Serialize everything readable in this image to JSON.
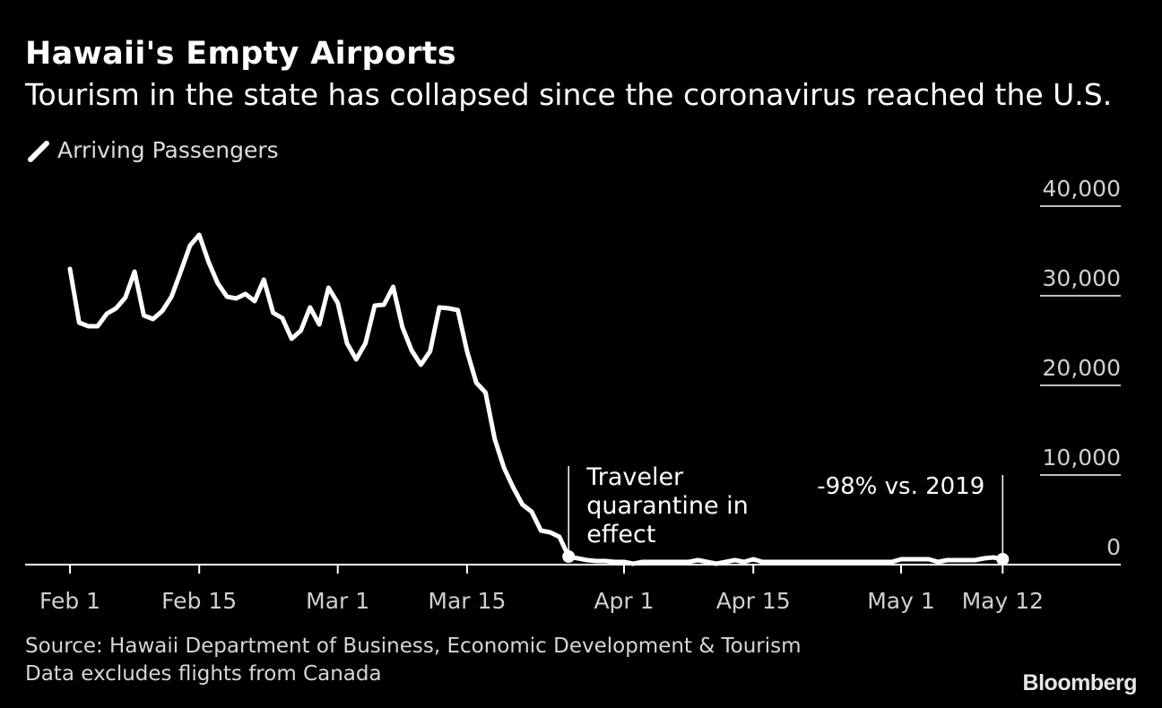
{
  "header": {
    "title": "Hawaii's Empty Airports",
    "subtitle": "Tourism in the state has collapsed since the coronavirus reached the U.S."
  },
  "footer": {
    "source": "Source: Hawaii Department of Business, Economic Development & Tourism",
    "note": "Data excludes flights from Canada",
    "brand": "Bloomberg"
  },
  "colors": {
    "background": "#000000",
    "line": "#ffffff",
    "text": "#ffffff"
  },
  "chart_data": {
    "type": "line",
    "title": "Hawaii's Empty Airports",
    "subtitle": "Tourism in the state has collapsed since the coronavirus reached the U.S.",
    "legend": "top-left",
    "grid": true,
    "y_axis_position": "right",
    "ylim": [
      0,
      40000
    ],
    "yticks": [
      0,
      10000,
      20000,
      30000,
      40000
    ],
    "ytick_labels": [
      "0",
      "10,000",
      "20,000",
      "30,000",
      "40,000"
    ],
    "xlim": [
      "2020-02-01",
      "2020-05-20"
    ],
    "xticks": [
      {
        "date": "2020-02-01",
        "label": "Feb 1"
      },
      {
        "date": "2020-02-15",
        "label": "Feb 15"
      },
      {
        "date": "2020-03-01",
        "label": "Mar 1"
      },
      {
        "date": "2020-03-15",
        "label": "Mar 15"
      },
      {
        "date": "2020-04-01",
        "label": "Apr 1"
      },
      {
        "date": "2020-04-15",
        "label": "Apr 15"
      },
      {
        "date": "2020-05-01",
        "label": "May 1"
      },
      {
        "date": "2020-05-12",
        "label": "May 12"
      }
    ],
    "series": [
      {
        "name": "Arriving Passengers",
        "x": [
          "2020-02-01",
          "2020-02-02",
          "2020-02-03",
          "2020-02-04",
          "2020-02-05",
          "2020-02-06",
          "2020-02-07",
          "2020-02-08",
          "2020-02-09",
          "2020-02-10",
          "2020-02-11",
          "2020-02-12",
          "2020-02-13",
          "2020-02-14",
          "2020-02-15",
          "2020-02-16",
          "2020-02-17",
          "2020-02-18",
          "2020-02-19",
          "2020-02-20",
          "2020-02-21",
          "2020-02-22",
          "2020-02-23",
          "2020-02-24",
          "2020-02-25",
          "2020-02-26",
          "2020-02-27",
          "2020-02-28",
          "2020-02-29",
          "2020-03-01",
          "2020-03-02",
          "2020-03-03",
          "2020-03-04",
          "2020-03-05",
          "2020-03-06",
          "2020-03-07",
          "2020-03-08",
          "2020-03-09",
          "2020-03-10",
          "2020-03-11",
          "2020-03-12",
          "2020-03-13",
          "2020-03-14",
          "2020-03-15",
          "2020-03-16",
          "2020-03-17",
          "2020-03-18",
          "2020-03-19",
          "2020-03-20",
          "2020-03-21",
          "2020-03-22",
          "2020-03-23",
          "2020-03-24",
          "2020-03-25",
          "2020-03-26",
          "2020-03-27",
          "2020-03-28",
          "2020-03-29",
          "2020-03-30",
          "2020-03-31",
          "2020-04-01",
          "2020-04-02",
          "2020-04-03",
          "2020-04-04",
          "2020-04-05",
          "2020-04-06",
          "2020-04-07",
          "2020-04-08",
          "2020-04-09",
          "2020-04-10",
          "2020-04-11",
          "2020-04-12",
          "2020-04-13",
          "2020-04-14",
          "2020-04-15",
          "2020-04-16",
          "2020-04-17",
          "2020-04-18",
          "2020-04-19",
          "2020-04-20",
          "2020-04-21",
          "2020-04-22",
          "2020-04-23",
          "2020-04-24",
          "2020-04-25",
          "2020-04-26",
          "2020-04-27",
          "2020-04-28",
          "2020-04-29",
          "2020-04-30",
          "2020-05-01",
          "2020-05-02",
          "2020-05-03",
          "2020-05-04",
          "2020-05-05",
          "2020-05-06",
          "2020-05-07",
          "2020-05-08",
          "2020-05-09",
          "2020-05-10",
          "2020-05-11",
          "2020-05-12"
        ],
        "y": [
          33000,
          27000,
          26600,
          26600,
          28000,
          28600,
          29800,
          32700,
          27800,
          27400,
          28300,
          29900,
          32700,
          35600,
          36800,
          33800,
          31400,
          29900,
          29700,
          30200,
          29400,
          31800,
          28100,
          27500,
          25200,
          26100,
          28700,
          26800,
          30900,
          29200,
          24700,
          22900,
          24700,
          28900,
          29000,
          31000,
          26500,
          23900,
          22300,
          23800,
          28700,
          28600,
          28400,
          23800,
          20300,
          19200,
          14000,
          10800,
          8600,
          6700,
          5900,
          3800,
          3600,
          3100,
          900,
          700,
          500,
          400,
          400,
          300,
          300,
          100,
          300,
          300,
          300,
          300,
          300,
          300,
          500,
          300,
          100,
          300,
          500,
          300,
          600,
          300,
          300,
          300,
          300,
          300,
          300,
          300,
          300,
          300,
          300,
          300,
          300,
          300,
          300,
          300,
          600,
          600,
          600,
          600,
          300,
          500,
          500,
          500,
          500,
          700,
          800,
          600
        ]
      }
    ],
    "annotations": [
      {
        "date": "2020-03-26",
        "text": [
          "Traveler",
          "quarantine in",
          "effect"
        ]
      },
      {
        "date": "2020-05-12",
        "text": [
          "-98% vs. 2019"
        ]
      }
    ]
  }
}
